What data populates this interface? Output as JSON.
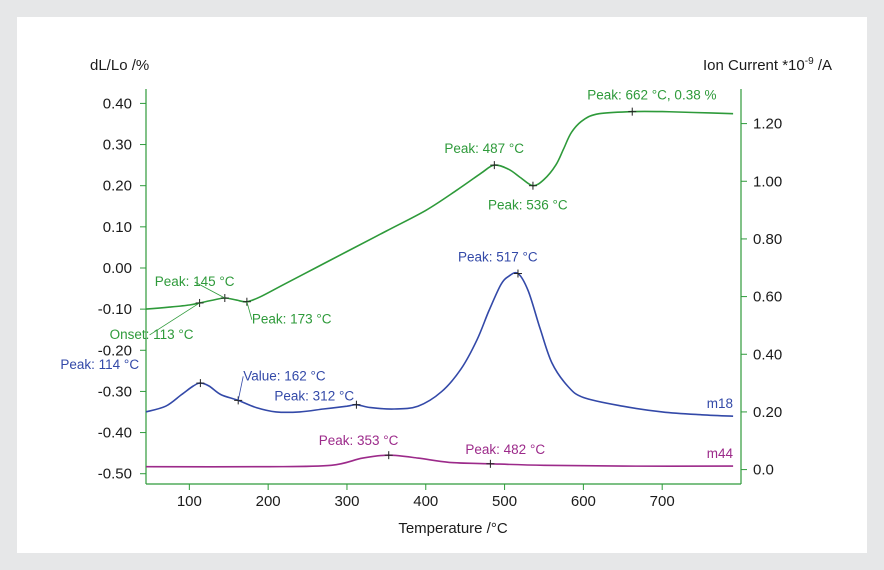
{
  "chart_data": {
    "type": "line",
    "title": "",
    "xlabel": "Temperature /°C",
    "ylabel_left": "dL/Lo /%",
    "ylabel_right": "Ion Current *10",
    "ylabel_right_exp": "-9",
    "ylabel_right_unit": " /A",
    "xlim": [
      45,
      800
    ],
    "ylim_left": [
      -0.525,
      0.435
    ],
    "ylim_right": [
      -0.05,
      1.32
    ],
    "x_ticks": [
      100,
      200,
      300,
      400,
      500,
      600,
      700
    ],
    "y_left_ticks": [
      0.4,
      0.3,
      0.2,
      0.1,
      0.0,
      -0.1,
      -0.2,
      -0.3,
      -0.4,
      -0.5
    ],
    "y_left_tick_labels": [
      "0.40",
      "0.30",
      "0.20",
      "0.10",
      "0.00",
      "-0.10",
      "-0.20",
      "-0.30",
      "-0.40",
      "-0.50"
    ],
    "y_right_ticks": [
      1.2,
      1.0,
      0.8,
      0.6,
      0.4,
      0.2,
      0.0
    ],
    "y_right_tick_labels": [
      "1.20",
      "1.00",
      "0.80",
      "0.60",
      "0.40",
      "0.20",
      "0.0"
    ],
    "grid": false,
    "series": [
      {
        "axis": "left",
        "color": "#2e9a3a",
        "x": [
          45,
          75,
          100,
          113,
          130,
          145,
          160,
          173,
          190,
          220,
          260,
          300,
          350,
          400,
          440,
          470,
          487,
          505,
          520,
          536,
          550,
          565,
          575,
          585,
          600,
          620,
          662,
          700,
          740,
          790
        ],
        "y": [
          -0.1,
          -0.095,
          -0.09,
          -0.085,
          -0.078,
          -0.073,
          -0.078,
          -0.082,
          -0.07,
          -0.04,
          0.0,
          0.04,
          0.09,
          0.14,
          0.19,
          0.23,
          0.25,
          0.24,
          0.22,
          0.2,
          0.215,
          0.25,
          0.29,
          0.33,
          0.36,
          0.375,
          0.38,
          0.38,
          0.378,
          0.375
        ]
      },
      {
        "name": "m18",
        "axis": "right",
        "color": "#3349a8",
        "x": [
          45,
          70,
          90,
          105,
          114,
          125,
          140,
          162,
          185,
          210,
          240,
          270,
          300,
          312,
          330,
          360,
          390,
          420,
          445,
          465,
          480,
          495,
          505,
          517,
          530,
          545,
          560,
          580,
          600,
          650,
          700,
          750,
          790
        ],
        "y": [
          0.2,
          0.22,
          0.26,
          0.29,
          0.3,
          0.29,
          0.26,
          0.24,
          0.215,
          0.2,
          0.2,
          0.21,
          0.22,
          0.225,
          0.215,
          0.21,
          0.22,
          0.27,
          0.35,
          0.45,
          0.55,
          0.64,
          0.67,
          0.68,
          0.62,
          0.49,
          0.37,
          0.29,
          0.25,
          0.22,
          0.2,
          0.19,
          0.185
        ]
      },
      {
        "name": "m44",
        "axis": "right",
        "color": "#9c2a8a",
        "x": [
          45,
          200,
          280,
          320,
          353,
          390,
          430,
          482,
          550,
          650,
          790
        ],
        "y": [
          0.01,
          0.01,
          0.015,
          0.04,
          0.05,
          0.04,
          0.025,
          0.02,
          0.015,
          0.012,
          0.012
        ]
      }
    ],
    "annotations": [
      {
        "text": "Peak: 662 °C, 0.38 %",
        "axis": "left",
        "x": 662,
        "y": 0.38,
        "color": "#2e9a3a"
      },
      {
        "text": "Peak: 487 °C",
        "axis": "left",
        "x": 487,
        "y": 0.25,
        "color": "#2e9a3a"
      },
      {
        "text": "Peak: 536 °C",
        "axis": "left",
        "x": 536,
        "y": 0.2,
        "color": "#2e9a3a"
      },
      {
        "text": "Peak: 145 °C",
        "axis": "left",
        "x": 145,
        "y": -0.073,
        "color": "#2e9a3a"
      },
      {
        "text": "Peak: 173 °C",
        "axis": "left",
        "x": 173,
        "y": -0.082,
        "color": "#2e9a3a"
      },
      {
        "text": "Onset: 113 °C",
        "axis": "left",
        "x": 113,
        "y": -0.085,
        "color": "#2e9a3a"
      },
      {
        "text": "Peak: 517 °C",
        "axis": "right",
        "x": 517,
        "y": 0.68,
        "color": "#3349a8"
      },
      {
        "text": "Peak: 114 °C",
        "axis": "right",
        "x": 114,
        "y": 0.3,
        "color": "#3349a8"
      },
      {
        "text": "Value: 162 °C",
        "axis": "right",
        "x": 162,
        "y": 0.24,
        "color": "#3349a8"
      },
      {
        "text": "Peak: 312 °C",
        "axis": "right",
        "x": 312,
        "y": 0.225,
        "color": "#3349a8"
      },
      {
        "text": "Peak: 353 °C",
        "axis": "right",
        "x": 353,
        "y": 0.05,
        "color": "#9c2a8a"
      },
      {
        "text": "Peak: 482 °C",
        "axis": "right",
        "x": 482,
        "y": 0.02,
        "color": "#9c2a8a"
      }
    ]
  }
}
